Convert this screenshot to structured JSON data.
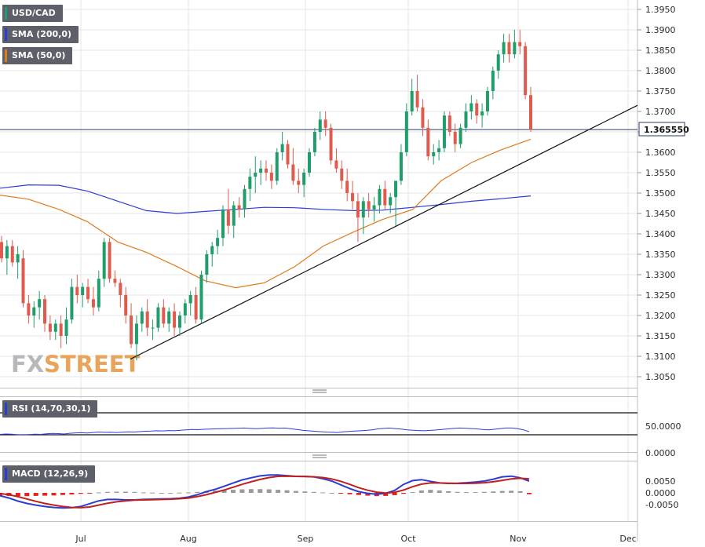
{
  "legend": {
    "pair": "USD/CAD",
    "sma200": "SMA (200,0)",
    "sma50": "SMA (50,0)",
    "rsi": "RSI (14,70,30,1)",
    "macd": "MACD (12,26,9)"
  },
  "logo": {
    "part1": "FX",
    "part2": "STREET"
  },
  "colors": {
    "up": "#1f9d6b",
    "down": "#e05a4e",
    "sma200": "#2a3ed4",
    "sma50": "#e07a1e",
    "macd": "#2a3ed4",
    "signal": "#c0201c",
    "hist_pos": "#9a9a9a",
    "hist_neg": "#e8231b",
    "grid": "#e6e6e6"
  },
  "chart_data": {
    "type": "candlestick",
    "title": "USD/CAD",
    "x_ticks": [
      "Jul",
      "Aug",
      "Sep",
      "Oct",
      "Nov",
      "Dec"
    ],
    "y_ticks": [
      "1.3950",
      "1.3900",
      "1.3850",
      "1.3800",
      "1.3750",
      "1.3700",
      "1.3650",
      "1.3600",
      "1.3550",
      "1.3500",
      "1.3450",
      "1.3400",
      "1.3350",
      "1.3300",
      "1.3250",
      "1.3200",
      "1.3150",
      "1.3100",
      "1.3050"
    ],
    "current_price": "1.365550",
    "candles_ohlc": [
      [
        1.338,
        1.3395,
        1.333,
        1.334
      ],
      [
        1.334,
        1.3385,
        1.33,
        1.337
      ],
      [
        1.337,
        1.3385,
        1.332,
        1.333
      ],
      [
        1.333,
        1.337,
        1.329,
        1.335
      ],
      [
        1.334,
        1.336,
        1.322,
        1.323
      ],
      [
        1.323,
        1.325,
        1.318,
        1.32
      ],
      [
        1.32,
        1.3235,
        1.317,
        1.322
      ],
      [
        1.322,
        1.326,
        1.319,
        1.324
      ],
      [
        1.324,
        1.325,
        1.316,
        1.318
      ],
      [
        1.318,
        1.32,
        1.314,
        1.316
      ],
      [
        1.316,
        1.319,
        1.314,
        1.318
      ],
      [
        1.318,
        1.32,
        1.312,
        1.315
      ],
      [
        1.315,
        1.322,
        1.313,
        1.319
      ],
      [
        1.319,
        1.329,
        1.318,
        1.327
      ],
      [
        1.327,
        1.33,
        1.323,
        1.325
      ],
      [
        1.325,
        1.328,
        1.322,
        1.327
      ],
      [
        1.327,
        1.329,
        1.323,
        1.324
      ],
      [
        1.324,
        1.327,
        1.32,
        1.322
      ],
      [
        1.322,
        1.331,
        1.321,
        1.329
      ],
      [
        1.329,
        1.339,
        1.327,
        1.338
      ],
      [
        1.338,
        1.339,
        1.328,
        1.329
      ],
      [
        1.329,
        1.331,
        1.327,
        1.328
      ],
      [
        1.328,
        1.329,
        1.322,
        1.325
      ],
      [
        1.325,
        1.327,
        1.318,
        1.32
      ],
      [
        1.32,
        1.323,
        1.312,
        1.313
      ],
      [
        1.313,
        1.32,
        1.309,
        1.318
      ],
      [
        1.318,
        1.322,
        1.316,
        1.321
      ],
      [
        1.321,
        1.324,
        1.315,
        1.317
      ],
      [
        1.317,
        1.319,
        1.314,
        1.317
      ],
      [
        1.317,
        1.323,
        1.316,
        1.322
      ],
      [
        1.322,
        1.324,
        1.317,
        1.318
      ],
      [
        1.318,
        1.322,
        1.316,
        1.321
      ],
      [
        1.321,
        1.323,
        1.315,
        1.317
      ],
      [
        1.317,
        1.321,
        1.315,
        1.32
      ],
      [
        1.32,
        1.324,
        1.318,
        1.323
      ],
      [
        1.323,
        1.326,
        1.32,
        1.325
      ],
      [
        1.325,
        1.327,
        1.318,
        1.319
      ],
      [
        1.319,
        1.331,
        1.318,
        1.33
      ],
      [
        1.33,
        1.336,
        1.328,
        1.335
      ],
      [
        1.335,
        1.338,
        1.332,
        1.337
      ],
      [
        1.337,
        1.341,
        1.335,
        1.339
      ],
      [
        1.339,
        1.347,
        1.337,
        1.346
      ],
      [
        1.346,
        1.351,
        1.34,
        1.342
      ],
      [
        1.342,
        1.348,
        1.339,
        1.347
      ],
      [
        1.347,
        1.349,
        1.344,
        1.346
      ],
      [
        1.346,
        1.352,
        1.344,
        1.351
      ],
      [
        1.351,
        1.356,
        1.348,
        1.354
      ],
      [
        1.354,
        1.359,
        1.35,
        1.355
      ],
      [
        1.355,
        1.358,
        1.352,
        1.356
      ],
      [
        1.356,
        1.358,
        1.353,
        1.355
      ],
      [
        1.355,
        1.357,
        1.351,
        1.353
      ],
      [
        1.353,
        1.361,
        1.352,
        1.36
      ],
      [
        1.36,
        1.365,
        1.358,
        1.362
      ],
      [
        1.362,
        1.363,
        1.356,
        1.357
      ],
      [
        1.357,
        1.361,
        1.352,
        1.353
      ],
      [
        1.353,
        1.356,
        1.35,
        1.352
      ],
      [
        1.352,
        1.356,
        1.349,
        1.355
      ],
      [
        1.355,
        1.361,
        1.354,
        1.36
      ],
      [
        1.36,
        1.366,
        1.359,
        1.365
      ],
      [
        1.365,
        1.37,
        1.363,
        1.368
      ],
      [
        1.368,
        1.37,
        1.364,
        1.366
      ],
      [
        1.366,
        1.367,
        1.357,
        1.358
      ],
      [
        1.358,
        1.361,
        1.355,
        1.356
      ],
      [
        1.356,
        1.358,
        1.351,
        1.353
      ],
      [
        1.353,
        1.356,
        1.348,
        1.35
      ],
      [
        1.35,
        1.353,
        1.346,
        1.348
      ],
      [
        1.348,
        1.35,
        1.338,
        1.344
      ],
      [
        1.344,
        1.349,
        1.34,
        1.348
      ],
      [
        1.348,
        1.35,
        1.344,
        1.346
      ],
      [
        1.346,
        1.349,
        1.343,
        1.347
      ],
      [
        1.347,
        1.352,
        1.345,
        1.351
      ],
      [
        1.351,
        1.353,
        1.346,
        1.347
      ],
      [
        1.347,
        1.35,
        1.345,
        1.349
      ],
      [
        1.349,
        1.351,
        1.342,
        1.353
      ],
      [
        1.353,
        1.362,
        1.352,
        1.36
      ],
      [
        1.36,
        1.372,
        1.359,
        1.37
      ],
      [
        1.37,
        1.378,
        1.369,
        1.375
      ],
      [
        1.375,
        1.379,
        1.37,
        1.371
      ],
      [
        1.371,
        1.373,
        1.364,
        1.366
      ],
      [
        1.366,
        1.368,
        1.358,
        1.359
      ],
      [
        1.359,
        1.362,
        1.357,
        1.36
      ],
      [
        1.36,
        1.363,
        1.358,
        1.361
      ],
      [
        1.361,
        1.37,
        1.36,
        1.369
      ],
      [
        1.369,
        1.37,
        1.364,
        1.365
      ],
      [
        1.365,
        1.367,
        1.36,
        1.362
      ],
      [
        1.362,
        1.367,
        1.361,
        1.366
      ],
      [
        1.366,
        1.372,
        1.365,
        1.37
      ],
      [
        1.37,
        1.374,
        1.368,
        1.372
      ],
      [
        1.372,
        1.373,
        1.367,
        1.369
      ],
      [
        1.369,
        1.372,
        1.366,
        1.37
      ],
      [
        1.37,
        1.376,
        1.369,
        1.375
      ],
      [
        1.375,
        1.381,
        1.373,
        1.38
      ],
      [
        1.38,
        1.385,
        1.378,
        1.384
      ],
      [
        1.384,
        1.389,
        1.382,
        1.387
      ],
      [
        1.387,
        1.389,
        1.382,
        1.384
      ],
      [
        1.384,
        1.39,
        1.383,
        1.387
      ],
      [
        1.387,
        1.39,
        1.384,
        1.386
      ],
      [
        1.386,
        1.387,
        1.373,
        1.374
      ],
      [
        1.374,
        1.376,
        1.365,
        1.3655
      ]
    ],
    "sma200": [
      [
        0,
        1.3512
      ],
      [
        12,
        1.352
      ],
      [
        25,
        1.3519
      ],
      [
        37,
        1.3505
      ],
      [
        50,
        1.348
      ],
      [
        62,
        1.3457
      ],
      [
        75,
        1.345
      ],
      [
        87,
        1.3455
      ],
      [
        100,
        1.346
      ],
      [
        112,
        1.3465
      ],
      [
        125,
        1.3464
      ],
      [
        137,
        1.346
      ],
      [
        150,
        1.3457
      ],
      [
        162,
        1.3458
      ],
      [
        175,
        1.3465
      ],
      [
        187,
        1.3472
      ],
      [
        200,
        1.348
      ],
      [
        212,
        1.3486
      ],
      [
        225,
        1.3493
      ]
    ],
    "sma50": [
      [
        0,
        1.3495
      ],
      [
        12,
        1.3485
      ],
      [
        25,
        1.346
      ],
      [
        37,
        1.343
      ],
      [
        50,
        1.338
      ],
      [
        62,
        1.3355
      ],
      [
        75,
        1.332
      ],
      [
        87,
        1.3285
      ],
      [
        100,
        1.3268
      ],
      [
        112,
        1.328
      ],
      [
        125,
        1.332
      ],
      [
        137,
        1.337
      ],
      [
        150,
        1.3405
      ],
      [
        162,
        1.3435
      ],
      [
        175,
        1.346
      ],
      [
        187,
        1.353
      ],
      [
        200,
        1.3575
      ],
      [
        212,
        1.3605
      ],
      [
        225,
        1.3632
      ]
    ],
    "trendline": [
      [
        1.3093
      ],
      [
        1.3715
      ]
    ],
    "current_line": 1.36555,
    "rsi": {
      "y_ticks": [
        "50.0000",
        "0.0000"
      ],
      "upper": 70,
      "lower": 30,
      "values": [
        35,
        37,
        36,
        33,
        32,
        34,
        36,
        35,
        38,
        40,
        39,
        37,
        41,
        43,
        44,
        42,
        45,
        48,
        46,
        47,
        45,
        47,
        49,
        48,
        50,
        52,
        53,
        55,
        54,
        56,
        55,
        58,
        60,
        62,
        61,
        63,
        64,
        65,
        66,
        67,
        68,
        69,
        70,
        68,
        66,
        68,
        70,
        71,
        69,
        70,
        66,
        62,
        58,
        55,
        52,
        50,
        48,
        47,
        45,
        49,
        51,
        53,
        55,
        57,
        60,
        65,
        68,
        70,
        67,
        64,
        60,
        58,
        56,
        55,
        57,
        59,
        62,
        65,
        68,
        70,
        69,
        67,
        65,
        62,
        60,
        63,
        67,
        70,
        70,
        67,
        60,
        50
      ]
    },
    "macd": {
      "y_ticks": [
        "0.0050",
        "0.0000",
        "-0.0050"
      ],
      "macd_line": [
        -0.0012,
        -0.0022,
        -0.0035,
        -0.0045,
        -0.0052,
        -0.0058,
        -0.0062,
        -0.0064,
        -0.0063,
        -0.0058,
        -0.0046,
        -0.0034,
        -0.0028,
        -0.0028,
        -0.003,
        -0.003,
        -0.0028,
        -0.0027,
        -0.0026,
        -0.0025,
        -0.0023,
        -0.0018,
        -0.0008,
        0.0005,
        0.0015,
        0.0028,
        0.0042,
        0.0055,
        0.0064,
        0.0072,
        0.0076,
        0.0076,
        0.0073,
        0.007,
        0.007,
        0.0068,
        0.006,
        0.005,
        0.0034,
        0.0018,
        0.0005,
        -0.0002,
        -0.0006,
        -0.0002,
        0.001,
        0.0036,
        0.0052,
        0.0056,
        0.0049,
        0.0042,
        0.004,
        0.0041,
        0.0043,
        0.0046,
        0.005,
        0.0058,
        0.0068,
        0.0071,
        0.0064,
        0.005
      ],
      "signal_line": [
        -0.0003,
        -0.0008,
        -0.0016,
        -0.0026,
        -0.0036,
        -0.0045,
        -0.0052,
        -0.0058,
        -0.0062,
        -0.0063,
        -0.006,
        -0.0052,
        -0.0044,
        -0.0038,
        -0.0034,
        -0.0031,
        -0.003,
        -0.0029,
        -0.0028,
        -0.0027,
        -0.0025,
        -0.0022,
        -0.0016,
        -0.0008,
        0.0002,
        0.0012,
        0.0024,
        0.0036,
        0.0047,
        0.0057,
        0.0065,
        0.007,
        0.0071,
        0.007,
        0.0069,
        0.0068,
        0.0065,
        0.0059,
        0.0049,
        0.0036,
        0.0022,
        0.0011,
        0.0003,
        -0.0001,
        0.0002,
        0.0012,
        0.0026,
        0.0037,
        0.0042,
        0.0042,
        0.0041,
        0.004,
        0.004,
        0.0041,
        0.0043,
        0.0047,
        0.0053,
        0.0059,
        0.0062,
        0.0059
      ],
      "histogram": [
        -0.0012,
        -0.0013,
        -0.0014,
        -0.0014,
        -0.0013,
        -0.0012,
        -0.0011,
        -0.0009,
        -0.0007,
        -0.0004,
        -0.0001,
        0.0002,
        0.0004,
        0.0005,
        0.0005,
        0.0004,
        0.0002,
        0.0001,
        0.0,
        0.0,
        0.0001,
        0.0002,
        0.0004,
        0.0007,
        0.0009,
        0.0011,
        0.0013,
        0.0015,
        0.0016,
        0.0016,
        0.0015,
        0.0013,
        0.0011,
        0.0008,
        0.0006,
        0.0004,
        0.0002,
        0.0,
        -0.0003,
        -0.0006,
        -0.0009,
        -0.0012,
        -0.0014,
        -0.0013,
        -0.001,
        -0.0004,
        0.0003,
        0.001,
        0.0013,
        0.001,
        0.0007,
        0.0004,
        0.0003,
        0.0003,
        0.0004,
        0.0006,
        0.0008,
        0.0009,
        0.0007,
        -0.0006
      ]
    }
  }
}
